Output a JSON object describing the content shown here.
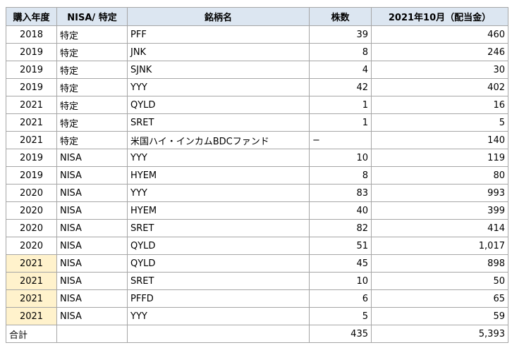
{
  "table": {
    "header": [
      "購入年度",
      "NISA/ 特定",
      "銘柄名",
      "株数",
      "2021年10月（配当金）"
    ],
    "rows": [
      [
        2018,
        "特定",
        "PFF",
        39,
        460
      ],
      [
        2019,
        "特定",
        "JNK",
        8,
        246
      ],
      [
        2019,
        "特定",
        "SJNK",
        4,
        30
      ],
      [
        2019,
        "特定",
        "YYY",
        42,
        402
      ],
      [
        2021,
        "特定",
        "QYLD",
        1,
        16
      ],
      [
        2021,
        "特定",
        "SRET",
        1,
        5
      ],
      [
        2021,
        "特定",
        "米国ハイ・インカムBDCファンド",
        "−",
        140
      ],
      [
        2019,
        "NISA",
        "YYY",
        10,
        119
      ],
      [
        2019,
        "NISA",
        "HYEM",
        8,
        80
      ],
      [
        2020,
        "NISA",
        "YYY",
        83,
        993
      ],
      [
        2020,
        "NISA",
        "HYEM",
        40,
        399
      ],
      [
        2020,
        "NISA",
        "SRET",
        82,
        414
      ],
      [
        2020,
        "NISA",
        "QYLD",
        51,
        "1,017"
      ],
      [
        2021,
        "NISA",
        "QYLD",
        45,
        898
      ],
      [
        2021,
        "NISA",
        "SRET",
        10,
        50
      ],
      [
        2021,
        "NISA",
        "PFFD",
        6,
        65
      ],
      [
        2021,
        "NISA",
        "YYY",
        5,
        59
      ]
    ],
    "total": [
      "合計",
      null,
      null,
      435,
      "5,393"
    ]
  }
}
